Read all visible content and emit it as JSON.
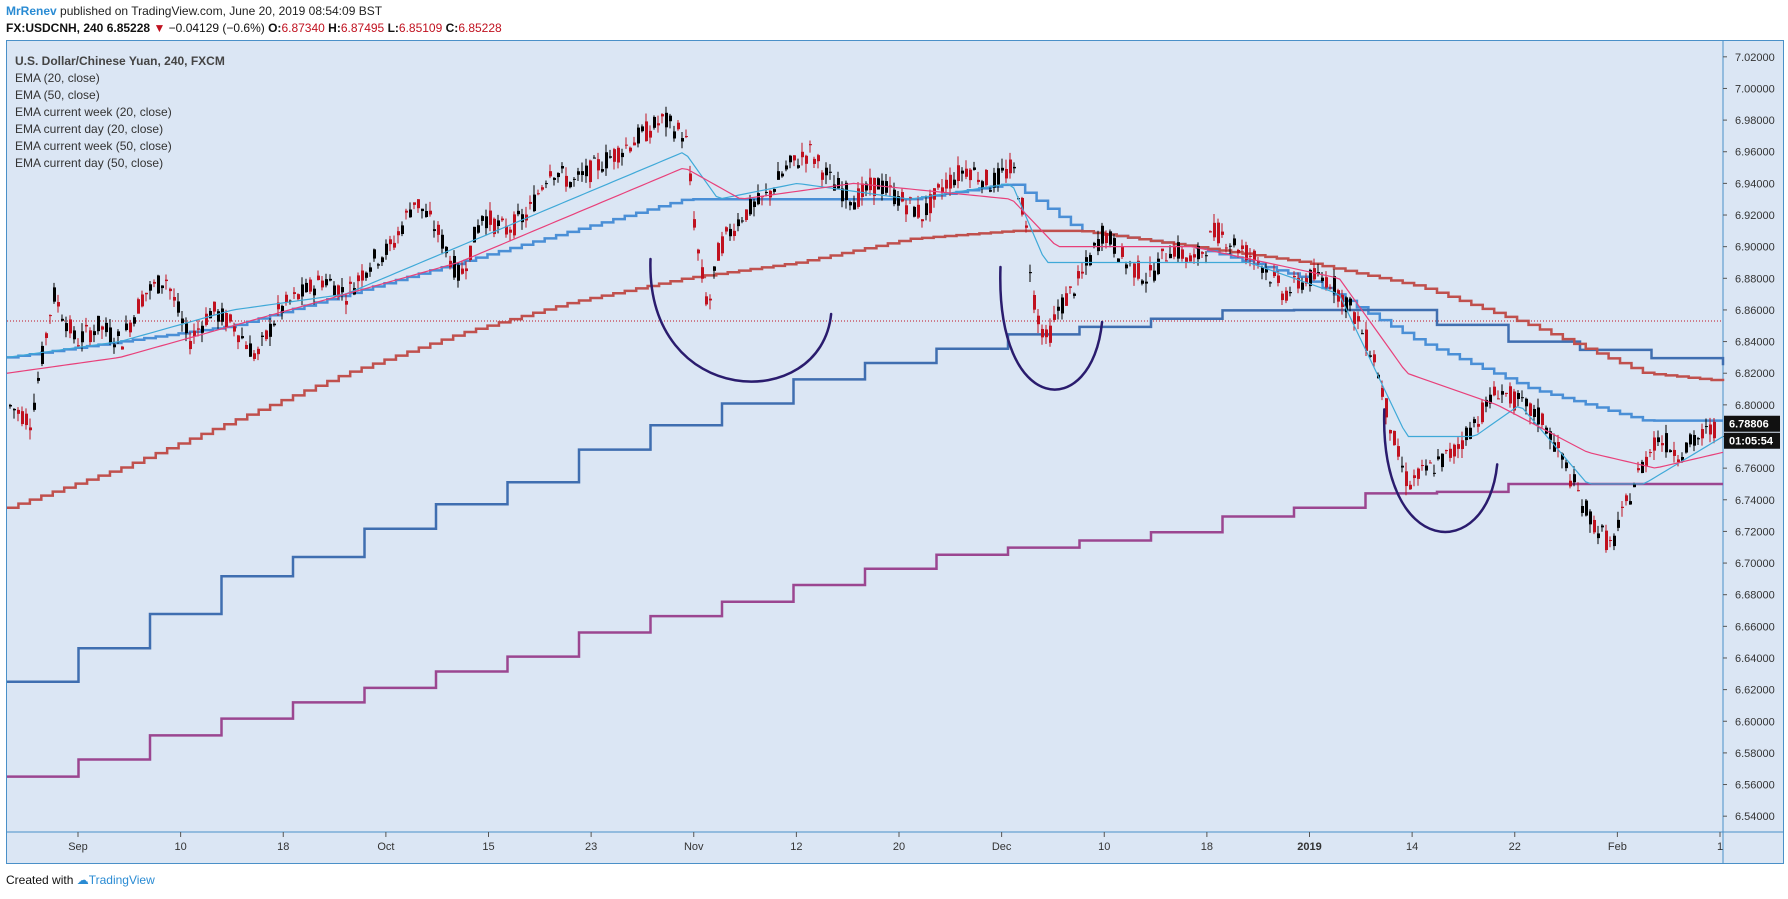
{
  "header": {
    "user": "MrRenev",
    "published": "published on TradingView.com, June 20, 2019 08:54:09 BST",
    "symbol": "FX:USDCNH, 240",
    "last": "6.85228",
    "arrow": "▼",
    "change": "−0.04129 (−0.6%)",
    "o_label": "O:",
    "o": "6.87340",
    "h_label": "H:",
    "h": "6.87495",
    "l_label": "L:",
    "l": "6.85109",
    "c_label": "C:",
    "c": "6.85228"
  },
  "legend": {
    "title": "U.S. Dollar/Chinese Yuan, 240, FXCM",
    "items": [
      "EMA (20, close)",
      "EMA (50, close)",
      "EMA current week (20, close)",
      "EMA current day (20, close)",
      "EMA current week (50, close)",
      "EMA current day (50, close)"
    ]
  },
  "footer": {
    "created": "Created with",
    "brand": "TradingView"
  },
  "colors": {
    "background": "#dbe6f4",
    "candle_up": "#000000",
    "candle_down": "#c0111f",
    "ema20": "#3fa9d8",
    "ema50": "#e8407a",
    "week20": "#4a8fd6",
    "week50": "#c0504d",
    "day20": "#3f6eb0",
    "day50": "#9b4690",
    "annotation": "#2a1c6e",
    "hline": "#c0111f"
  },
  "chart_data": {
    "type": "line",
    "symbol": "USDCNH",
    "timeframe": "240",
    "x_axis_labels": [
      "Sep",
      "10",
      "18",
      "Oct",
      "15",
      "23",
      "Nov",
      "12",
      "20",
      "Dec",
      "10",
      "18",
      "2019",
      "14",
      "22",
      "Feb",
      "1"
    ],
    "y_axis_labels": [
      "7.02000",
      "7.00000",
      "6.98000",
      "6.96000",
      "6.94000",
      "6.92000",
      "6.90000",
      "6.88000",
      "6.86000",
      "6.84000",
      "6.82000",
      "6.80000",
      "6.78000",
      "6.76000",
      "6.74000",
      "6.72000",
      "6.70000",
      "6.68000",
      "6.66000",
      "6.64000",
      "6.62000",
      "6.60000",
      "6.58000",
      "6.56000",
      "6.54000"
    ],
    "ylim": [
      6.53,
      7.03
    ],
    "current_price": "6.78806",
    "countdown": "01:05:54",
    "hline_price": 6.853,
    "price_path": [
      [
        0,
        6.8
      ],
      [
        2,
        6.79
      ],
      [
        4,
        6.87
      ],
      [
        6,
        6.84
      ],
      [
        8,
        6.85
      ],
      [
        10,
        6.84
      ],
      [
        12,
        6.87
      ],
      [
        14,
        6.88
      ],
      [
        16,
        6.84
      ],
      [
        18,
        6.86
      ],
      [
        20,
        6.85
      ],
      [
        22,
        6.83
      ],
      [
        24,
        6.86
      ],
      [
        26,
        6.87
      ],
      [
        28,
        6.88
      ],
      [
        30,
        6.87
      ],
      [
        32,
        6.89
      ],
      [
        34,
        6.9
      ],
      [
        36,
        6.93
      ],
      [
        38,
        6.91
      ],
      [
        40,
        6.88
      ],
      [
        42,
        6.92
      ],
      [
        44,
        6.91
      ],
      [
        46,
        6.92
      ],
      [
        48,
        6.95
      ],
      [
        50,
        6.94
      ],
      [
        52,
        6.95
      ],
      [
        54,
        6.96
      ],
      [
        56,
        6.97
      ],
      [
        58,
        6.98
      ],
      [
        60,
        6.97
      ],
      [
        61,
        6.9
      ],
      [
        62,
        6.86
      ],
      [
        63,
        6.9
      ],
      [
        65,
        6.92
      ],
      [
        67,
        6.93
      ],
      [
        69,
        6.95
      ],
      [
        71,
        6.96
      ],
      [
        73,
        6.94
      ],
      [
        75,
        6.93
      ],
      [
        77,
        6.94
      ],
      [
        79,
        6.93
      ],
      [
        81,
        6.92
      ],
      [
        83,
        6.94
      ],
      [
        85,
        6.95
      ],
      [
        87,
        6.94
      ],
      [
        89,
        6.95
      ],
      [
        90,
        6.92
      ],
      [
        91,
        6.86
      ],
      [
        92,
        6.84
      ],
      [
        93,
        6.86
      ],
      [
        95,
        6.88
      ],
      [
        97,
        6.91
      ],
      [
        99,
        6.89
      ],
      [
        101,
        6.88
      ],
      [
        103,
        6.9
      ],
      [
        105,
        6.89
      ],
      [
        107,
        6.91
      ],
      [
        109,
        6.9
      ],
      [
        111,
        6.89
      ],
      [
        113,
        6.87
      ],
      [
        115,
        6.88
      ],
      [
        117,
        6.88
      ],
      [
        119,
        6.86
      ],
      [
        121,
        6.83
      ],
      [
        123,
        6.77
      ],
      [
        124,
        6.75
      ],
      [
        126,
        6.76
      ],
      [
        128,
        6.77
      ],
      [
        130,
        6.79
      ],
      [
        132,
        6.81
      ],
      [
        134,
        6.8
      ],
      [
        136,
        6.79
      ],
      [
        138,
        6.76
      ],
      [
        140,
        6.73
      ],
      [
        142,
        6.71
      ],
      [
        144,
        6.75
      ],
      [
        146,
        6.78
      ],
      [
        148,
        6.77
      ],
      [
        150,
        6.78
      ],
      [
        152,
        6.79
      ]
    ],
    "n_points": 152,
    "series": [
      {
        "name": "EMA (20, close)",
        "path": [
          [
            0,
            6.83
          ],
          [
            10,
            6.84
          ],
          [
            20,
            6.86
          ],
          [
            30,
            6.87
          ],
          [
            40,
            6.9
          ],
          [
            50,
            6.93
          ],
          [
            60,
            6.96
          ],
          [
            63,
            6.93
          ],
          [
            70,
            6.94
          ],
          [
            80,
            6.93
          ],
          [
            89,
            6.94
          ],
          [
            92,
            6.89
          ],
          [
            100,
            6.89
          ],
          [
            110,
            6.89
          ],
          [
            118,
            6.87
          ],
          [
            124,
            6.78
          ],
          [
            130,
            6.78
          ],
          [
            134,
            6.8
          ],
          [
            140,
            6.75
          ],
          [
            145,
            6.75
          ],
          [
            152,
            6.78
          ]
        ]
      },
      {
        "name": "EMA (50, close)",
        "path": [
          [
            0,
            6.82
          ],
          [
            10,
            6.83
          ],
          [
            20,
            6.85
          ],
          [
            30,
            6.87
          ],
          [
            40,
            6.89
          ],
          [
            50,
            6.92
          ],
          [
            60,
            6.95
          ],
          [
            65,
            6.93
          ],
          [
            75,
            6.94
          ],
          [
            89,
            6.93
          ],
          [
            93,
            6.9
          ],
          [
            105,
            6.9
          ],
          [
            118,
            6.88
          ],
          [
            124,
            6.82
          ],
          [
            132,
            6.8
          ],
          [
            140,
            6.77
          ],
          [
            146,
            6.76
          ],
          [
            152,
            6.77
          ]
        ]
      },
      {
        "name": "EMA current week (20, close)",
        "path": [
          [
            0,
            6.83
          ],
          [
            10,
            6.84
          ],
          [
            20,
            6.85
          ],
          [
            30,
            6.87
          ],
          [
            40,
            6.89
          ],
          [
            50,
            6.91
          ],
          [
            60,
            6.93
          ],
          [
            70,
            6.93
          ],
          [
            80,
            6.93
          ],
          [
            89,
            6.94
          ],
          [
            95,
            6.91
          ],
          [
            105,
            6.9
          ],
          [
            115,
            6.88
          ],
          [
            125,
            6.84
          ],
          [
            135,
            6.81
          ],
          [
            145,
            6.79
          ],
          [
            152,
            6.79
          ]
        ]
      },
      {
        "name": "EMA current day (20, close)",
        "path": [
          [
            0,
            6.625
          ],
          [
            6,
            6.645
          ],
          [
            12,
            6.665
          ],
          [
            18,
            6.69
          ],
          [
            24,
            6.7
          ],
          [
            31,
            6.72
          ],
          [
            37,
            6.735
          ],
          [
            44,
            6.75
          ],
          [
            50,
            6.77
          ],
          [
            56,
            6.785
          ],
          [
            63,
            6.8
          ],
          [
            69,
            6.815
          ],
          [
            75,
            6.825
          ],
          [
            82,
            6.835
          ],
          [
            89,
            6.845
          ],
          [
            96,
            6.85
          ],
          [
            102,
            6.855
          ],
          [
            108,
            6.86
          ],
          [
            114,
            6.86
          ],
          [
            121,
            6.86
          ],
          [
            127,
            6.85
          ],
          [
            133,
            6.84
          ],
          [
            139,
            6.835
          ],
          [
            145,
            6.83
          ],
          [
            152,
            6.825
          ]
        ]
      },
      {
        "name": "EMA current week (50, close)",
        "path": [
          [
            0,
            6.735
          ],
          [
            10,
            6.76
          ],
          [
            20,
            6.79
          ],
          [
            30,
            6.82
          ],
          [
            40,
            6.845
          ],
          [
            50,
            6.865
          ],
          [
            60,
            6.88
          ],
          [
            70,
            6.89
          ],
          [
            80,
            6.905
          ],
          [
            89,
            6.91
          ],
          [
            95,
            6.91
          ],
          [
            105,
            6.9
          ],
          [
            115,
            6.89
          ],
          [
            125,
            6.875
          ],
          [
            135,
            6.85
          ],
          [
            145,
            6.82
          ],
          [
            152,
            6.815
          ]
        ]
      },
      {
        "name": "EMA current day (50, close)",
        "path": [
          [
            0,
            6.565
          ],
          [
            6,
            6.575
          ],
          [
            12,
            6.59
          ],
          [
            18,
            6.6
          ],
          [
            24,
            6.61
          ],
          [
            31,
            6.62
          ],
          [
            37,
            6.63
          ],
          [
            44,
            6.64
          ],
          [
            50,
            6.655
          ],
          [
            56,
            6.665
          ],
          [
            63,
            6.675
          ],
          [
            69,
            6.685
          ],
          [
            75,
            6.695
          ],
          [
            82,
            6.705
          ],
          [
            89,
            6.71
          ],
          [
            96,
            6.715
          ],
          [
            102,
            6.72
          ],
          [
            108,
            6.73
          ],
          [
            114,
            6.735
          ],
          [
            121,
            6.745
          ],
          [
            127,
            6.745
          ],
          [
            133,
            6.75
          ],
          [
            139,
            6.75
          ],
          [
            145,
            6.75
          ],
          [
            152,
            6.75
          ]
        ]
      }
    ],
    "annotations": [
      {
        "type": "arc",
        "x_from": 57,
        "x_to": 73,
        "bottom": 6.81
      },
      {
        "type": "arc",
        "x_from": 88,
        "x_to": 97,
        "bottom": 6.805
      },
      {
        "type": "arc",
        "x_from": 122,
        "x_to": 132,
        "bottom": 6.715
      }
    ]
  }
}
